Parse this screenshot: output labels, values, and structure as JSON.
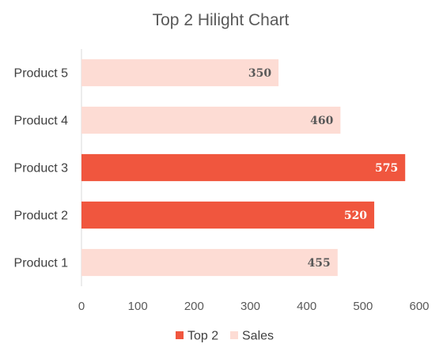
{
  "chart_data": {
    "type": "bar",
    "orientation": "horizontal",
    "title": "Top 2 Hilight Chart",
    "categories": [
      "Product 1",
      "Product 2",
      "Product 3",
      "Product 4",
      "Product 5"
    ],
    "values": [
      455,
      520,
      575,
      460,
      350
    ],
    "highlighted": [
      false,
      true,
      true,
      false,
      false
    ],
    "series": [
      {
        "name": "Top 2",
        "color": "#F0563E"
      },
      {
        "name": "Sales",
        "color": "#FDDCD4"
      }
    ],
    "data_label_colors": {
      "highlighted": "#ffffff",
      "normal": "#595959"
    },
    "xlim": [
      0,
      600
    ],
    "xticks": [
      0,
      100,
      200,
      300,
      400,
      500,
      600
    ],
    "xlabel": "",
    "ylabel": "",
    "grid": false,
    "legend_position": "bottom"
  }
}
